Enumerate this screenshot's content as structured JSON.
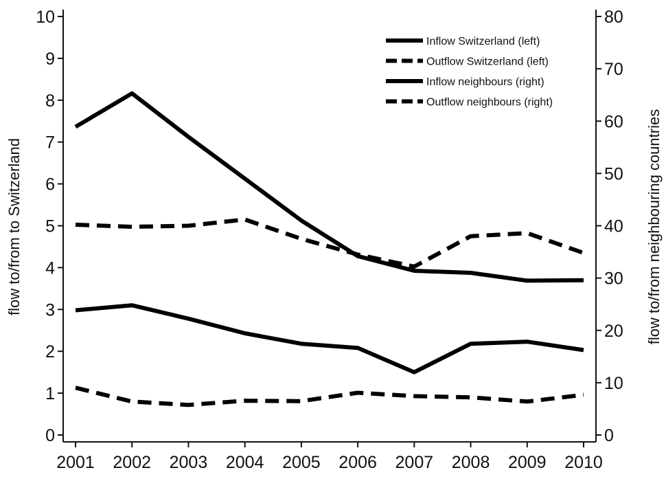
{
  "chart_data": {
    "type": "line",
    "x": [
      2001,
      2002,
      2003,
      2004,
      2005,
      2006,
      2007,
      2008,
      2009,
      2010
    ],
    "xlabel": "",
    "ylabel_left": "flow to/from to Switzerland",
    "ylabel_right": "flow to/from neighbouring countries",
    "ylim_left": [
      0,
      10
    ],
    "ylim_right": [
      0,
      80
    ],
    "yticks_left": [
      0,
      1,
      2,
      3,
      4,
      5,
      6,
      7,
      8,
      9,
      10
    ],
    "yticks_right": [
      0,
      10,
      20,
      30,
      40,
      50,
      60,
      70,
      80
    ],
    "grid": false,
    "legend_position": "top-right",
    "series": [
      {
        "name": "Inflow Switzerland (left)",
        "axis": "left",
        "style": "solid",
        "values": [
          2.98,
          3.1,
          2.78,
          2.43,
          2.18,
          2.08,
          1.5,
          2.18,
          2.23,
          2.03
        ]
      },
      {
        "name": "Outflow Switzerland (left)",
        "axis": "left",
        "style": "dashed",
        "values": [
          1.13,
          0.8,
          0.72,
          0.82,
          0.81,
          1.01,
          0.93,
          0.9,
          0.8,
          0.96
        ]
      },
      {
        "name": "Inflow neighbours (right)",
        "axis": "right",
        "style": "solid",
        "values": [
          58.9,
          65.3,
          57.0,
          49.0,
          41.0,
          34.2,
          31.4,
          31.0,
          29.5,
          29.6
        ]
      },
      {
        "name": "Outflow neighbours (right)",
        "axis": "right",
        "style": "dashed",
        "values": [
          40.2,
          39.8,
          40.0,
          41.2,
          37.5,
          34.5,
          32.2,
          38.0,
          38.6,
          34.8
        ]
      }
    ]
  }
}
